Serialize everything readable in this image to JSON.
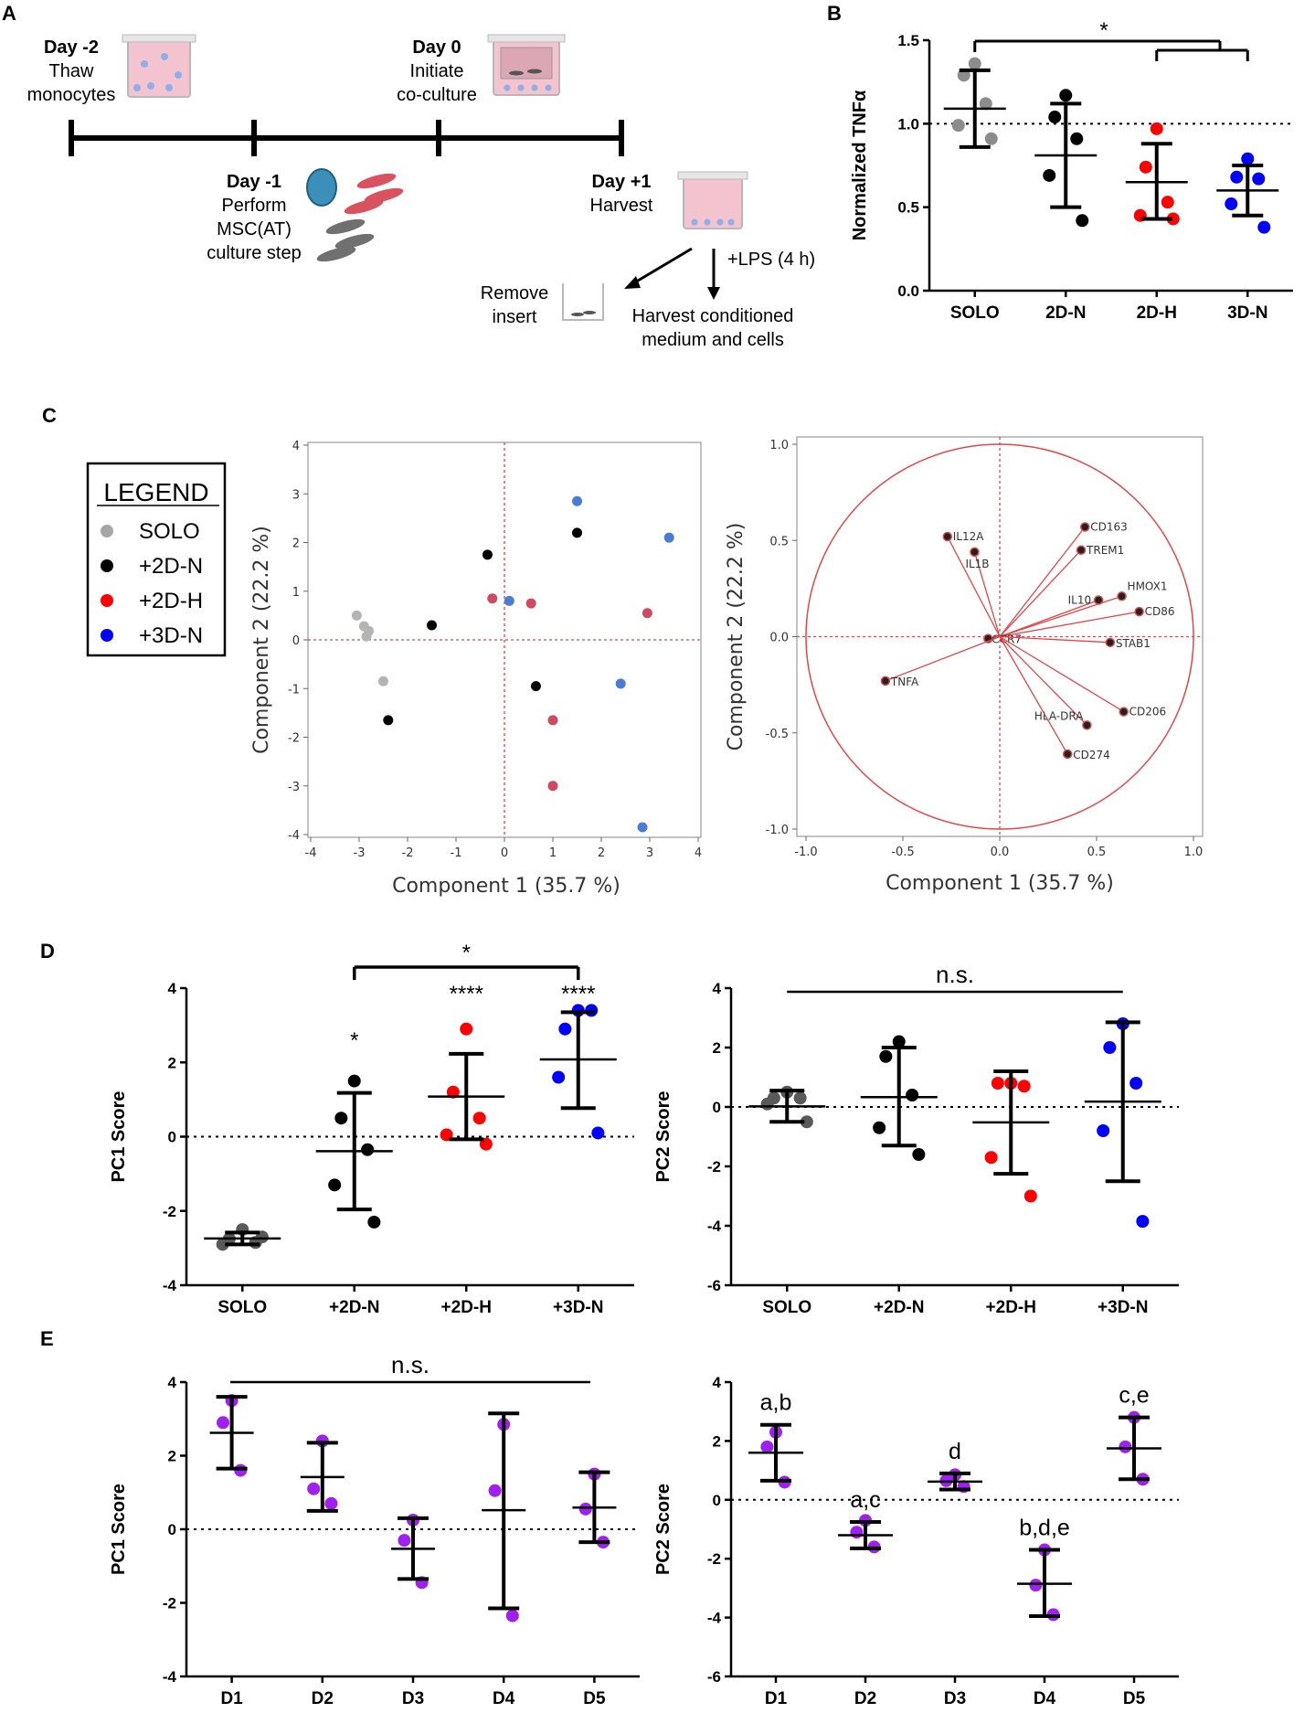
{
  "panel_labels": {
    "A": "A",
    "B": "B",
    "C": "C",
    "D": "D",
    "E": "E"
  },
  "timeline": {
    "day_m2": {
      "day": "Day -2",
      "l1": "Thaw",
      "l2": "monocytes"
    },
    "day_0": {
      "day": "Day 0",
      "l1": "Initiate",
      "l2": "co-culture"
    },
    "day_m1": {
      "day": "Day -1",
      "l1": "Perform",
      "l2": "MSC(AT)",
      "l3": "culture step"
    },
    "day_p1": {
      "day": "Day +1",
      "l1": "Harvest"
    },
    "lps": "+LPS (4 h)",
    "remove_insert": {
      "l1": "Remove",
      "l2": "insert"
    },
    "harvest_conditioned": {
      "l1": "Harvest conditioned",
      "l2": "medium and cells"
    }
  },
  "legend": {
    "title": "LEGEND",
    "items": [
      {
        "label": "SOLO",
        "color": "#a6a6a6"
      },
      {
        "label": "+2D-N",
        "color": "#000000"
      },
      {
        "label": "+2D-H",
        "color": "#ff0000"
      },
      {
        "label": "+3D-N",
        "color": "#0000ff"
      }
    ]
  },
  "chart_data": [
    {
      "id": "B",
      "type": "scatter",
      "ylabel": "Normalized TNFα",
      "ylim": [
        0.0,
        1.5
      ],
      "yticks": [
        "0.0",
        "0.5",
        "1.0",
        "1.5"
      ],
      "categories": [
        "SOLO",
        "2D-N",
        "2D-H",
        "3D-N"
      ],
      "reference_line": 1.0,
      "colors": [
        "#8c8c8c",
        "#000000",
        "#ff0000",
        "#0000ff"
      ],
      "points": [
        [
          1.36,
          1.29,
          1.12,
          0.99,
          0.91
        ],
        [
          1.17,
          1.04,
          0.91,
          0.69,
          0.42
        ],
        [
          0.97,
          0.74,
          0.53,
          0.45,
          0.43
        ],
        [
          0.79,
          0.68,
          0.67,
          0.52,
          0.38
        ]
      ],
      "mean": [
        1.09,
        0.81,
        0.65,
        0.6
      ],
      "sd_upper": [
        1.32,
        1.12,
        0.88,
        0.75
      ],
      "sd_lower": [
        0.86,
        0.5,
        0.43,
        0.45
      ],
      "significance": {
        "label": "*",
        "comparison": "SOLO vs 2D-H & 3D-N"
      }
    },
    {
      "id": "C-scores",
      "type": "scatter",
      "xlabel": "Component 1  (35.7 %)",
      "ylabel": "Component 2  (22.2 %)",
      "xlim": [
        -4,
        4
      ],
      "ylim": [
        -4,
        4
      ],
      "ticks": [
        "-4",
        "-3",
        "-2",
        "-1",
        "0",
        "1",
        "2",
        "3",
        "4"
      ],
      "series": [
        {
          "name": "SOLO",
          "color": "#b4b4b4",
          "x": [
            -3.05,
            -2.9,
            -2.8,
            -2.85,
            -2.5
          ],
          "y": [
            0.5,
            0.28,
            0.18,
            0.07,
            -0.85
          ]
        },
        {
          "name": "+2D-N",
          "color": "#000000",
          "x": [
            -0.35,
            1.5,
            -1.5,
            0.65,
            -2.4
          ],
          "y": [
            1.75,
            2.2,
            0.3,
            -0.95,
            -1.65
          ]
        },
        {
          "name": "+2D-H",
          "color": "#cf4a5e",
          "x": [
            -0.25,
            0.55,
            2.95,
            1.0,
            1.0
          ],
          "y": [
            0.85,
            0.75,
            0.55,
            -1.65,
            -3.0
          ]
        },
        {
          "name": "+3D-N",
          "color": "#4a7cd6",
          "x": [
            1.5,
            3.4,
            0.1,
            2.4,
            2.85
          ],
          "y": [
            2.85,
            2.1,
            0.8,
            -0.9,
            -3.85
          ]
        }
      ]
    },
    {
      "id": "C-loadings",
      "type": "scatter",
      "xlabel": "Component 1  (35.7 %)",
      "ylabel": "Component 2  (22.2 %)",
      "xlim": [
        -1.0,
        1.0
      ],
      "ylim": [
        -1.0,
        1.0
      ],
      "xticks": [
        "-1.0",
        "-0.5",
        "0.0",
        "0.5",
        "1.0"
      ],
      "yticks": [
        "1.0",
        "0.5",
        "0.0",
        "-0.5",
        "-1.0"
      ],
      "vectors": [
        {
          "name": "IL12A",
          "x": -0.27,
          "y": 0.52
        },
        {
          "name": "IL1B",
          "x": -0.13,
          "y": 0.44
        },
        {
          "name": "CD163",
          "x": 0.44,
          "y": 0.57
        },
        {
          "name": "TREM1",
          "x": 0.42,
          "y": 0.45
        },
        {
          "name": "HMOX1",
          "x": 0.63,
          "y": 0.21
        },
        {
          "name": "IL10",
          "x": 0.51,
          "y": 0.19
        },
        {
          "name": "CD86",
          "x": 0.72,
          "y": 0.13
        },
        {
          "name": "CCR7",
          "x": -0.06,
          "y": -0.01
        },
        {
          "name": "STAB1",
          "x": 0.57,
          "y": -0.03
        },
        {
          "name": "TNFA",
          "x": -0.59,
          "y": -0.23
        },
        {
          "name": "CD206",
          "x": 0.64,
          "y": -0.39
        },
        {
          "name": "HLA-DRA",
          "x": 0.45,
          "y": -0.46
        },
        {
          "name": "CD274",
          "x": 0.35,
          "y": -0.61
        }
      ]
    },
    {
      "id": "D-PC1",
      "type": "scatter",
      "ylabel": "PC1 Score",
      "ylim": [
        -4,
        4
      ],
      "yticks": [
        "-4",
        "-2",
        "0",
        "2",
        "4"
      ],
      "categories": [
        "SOLO",
        "+2D-N",
        "+2D-H",
        "+3D-N"
      ],
      "reference_line": 0,
      "colors": [
        "#595959",
        "#000000",
        "#ff0000",
        "#0000ff"
      ],
      "points": [
        [
          -2.5,
          -2.75,
          -2.85,
          -2.9,
          -2.7
        ],
        [
          1.5,
          0.5,
          -0.35,
          -1.3,
          -2.3
        ],
        [
          2.9,
          1.2,
          0.5,
          0.05,
          -0.2
        ],
        [
          3.4,
          2.9,
          3.4,
          1.6,
          0.1
        ]
      ],
      "mean": [
        -2.74,
        -0.39,
        1.08,
        2.08
      ],
      "sd_upper": [
        -2.58,
        1.18,
        2.23,
        3.35
      ],
      "sd_lower": [
        -2.9,
        -1.96,
        -0.07,
        0.77
      ],
      "significance": {
        "labels": [
          "",
          "*",
          "****",
          "****"
        ],
        "bracket_label": "*",
        "bracket": "+2D-N vs +3D-N"
      }
    },
    {
      "id": "D-PC2",
      "type": "scatter",
      "ylabel": "PC2 Score",
      "ylim": [
        -6,
        4
      ],
      "yticks": [
        "-6",
        "-4",
        "-2",
        "0",
        "2",
        "4"
      ],
      "categories": [
        "SOLO",
        "+2D-N",
        "+2D-H",
        "+3D-N"
      ],
      "reference_line": 0,
      "colors": [
        "#595959",
        "#000000",
        "#ff0000",
        "#0000ff"
      ],
      "points": [
        [
          0.5,
          0.3,
          0.3,
          0.1,
          -0.5
        ],
        [
          2.2,
          1.7,
          0.4,
          -0.7,
          -1.6
        ],
        [
          0.8,
          0.8,
          0.7,
          -1.7,
          -3.0
        ],
        [
          2.8,
          2.0,
          0.8,
          -0.8,
          -3.85
        ]
      ],
      "mean": [
        0.02,
        0.33,
        -0.52,
        0.18
      ],
      "sd_upper": [
        0.55,
        2.0,
        1.2,
        2.85
      ],
      "sd_lower": [
        -0.5,
        -1.3,
        -2.25,
        -2.5
      ],
      "significance": {
        "bracket_label": "n.s."
      }
    },
    {
      "id": "E-PC1",
      "type": "scatter",
      "ylabel": "PC1 Score",
      "ylim": [
        -4,
        4
      ],
      "yticks": [
        "-4",
        "-2",
        "0",
        "2",
        "4"
      ],
      "categories": [
        "D1",
        "D2",
        "D3",
        "D4",
        "D5"
      ],
      "reference_line": 0,
      "color": "#a020f0",
      "points": [
        [
          3.5,
          2.9,
          1.6
        ],
        [
          2.4,
          1.1,
          0.7
        ],
        [
          0.25,
          -0.3,
          -1.45
        ],
        [
          2.85,
          1.05,
          -2.35
        ],
        [
          1.5,
          0.55,
          -0.35
        ]
      ],
      "mean": [
        2.62,
        1.42,
        -0.53,
        0.52,
        0.59
      ],
      "sd_upper": [
        3.6,
        2.35,
        0.3,
        3.15,
        1.55
      ],
      "sd_lower": [
        1.65,
        0.5,
        -1.35,
        -2.15,
        -0.35
      ],
      "significance": {
        "bracket_label": "n.s."
      }
    },
    {
      "id": "E-PC2",
      "type": "scatter",
      "ylabel": "PC2 Score",
      "ylim": [
        -6,
        4
      ],
      "yticks": [
        "-6",
        "-4",
        "-2",
        "0",
        "2",
        "4"
      ],
      "categories": [
        "D1",
        "D2",
        "D3",
        "D4",
        "D5"
      ],
      "reference_line": 0,
      "color": "#a020f0",
      "points": [
        [
          2.3,
          1.8,
          0.6
        ],
        [
          -0.7,
          -1.1,
          -1.6
        ],
        [
          0.85,
          0.65,
          0.45
        ],
        [
          -1.7,
          -2.9,
          -3.9
        ],
        [
          2.8,
          1.8,
          0.7
        ]
      ],
      "mean": [
        1.6,
        -1.2,
        0.62,
        -2.85,
        1.75
      ],
      "sd_upper": [
        2.55,
        -0.75,
        0.9,
        -1.7,
        2.8
      ],
      "sd_lower": [
        0.65,
        -1.65,
        0.35,
        -3.95,
        0.7
      ],
      "significance": {
        "labels": [
          "a,b",
          "a,c",
          "d",
          "b,d,e",
          "c,e"
        ]
      }
    }
  ]
}
